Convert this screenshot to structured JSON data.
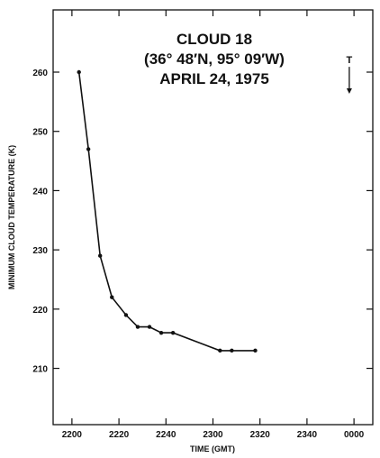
{
  "chart_data": {
    "type": "line",
    "title_lines": [
      "CLOUD 18",
      "(36° 48′N, 95° 09′W)",
      "APRIL 24, 1975"
    ],
    "xlabel": "TIME (GMT)",
    "ylabel": "MINIMUM CLOUD TEMPERATURE (K)",
    "x_ticks": [
      {
        "label": "2200",
        "minutes": 0
      },
      {
        "label": "2220",
        "minutes": 20
      },
      {
        "label": "2240",
        "minutes": 40
      },
      {
        "label": "2300",
        "minutes": 60
      },
      {
        "label": "2320",
        "minutes": 80
      },
      {
        "label": "2340",
        "minutes": 100
      },
      {
        "label": "0000",
        "minutes": 120
      }
    ],
    "y_ticks": [
      210,
      220,
      230,
      240,
      250,
      260
    ],
    "xlim_minutes": [
      -8,
      128
    ],
    "ylim": [
      200.5,
      270.5
    ],
    "grid": false,
    "annotation": {
      "label": "T",
      "x_minutes": 118,
      "y": 261.5,
      "arrow_to_y": 256.5
    },
    "series": [
      {
        "x": [
          "2203",
          "2207",
          "2212",
          "2217",
          "2223",
          "2228",
          "2233",
          "2238",
          "2243",
          "2303",
          "2308",
          "2318"
        ],
        "values": [
          260,
          247,
          229,
          222,
          219,
          217,
          217,
          216,
          216,
          213,
          213,
          213
        ]
      }
    ]
  }
}
